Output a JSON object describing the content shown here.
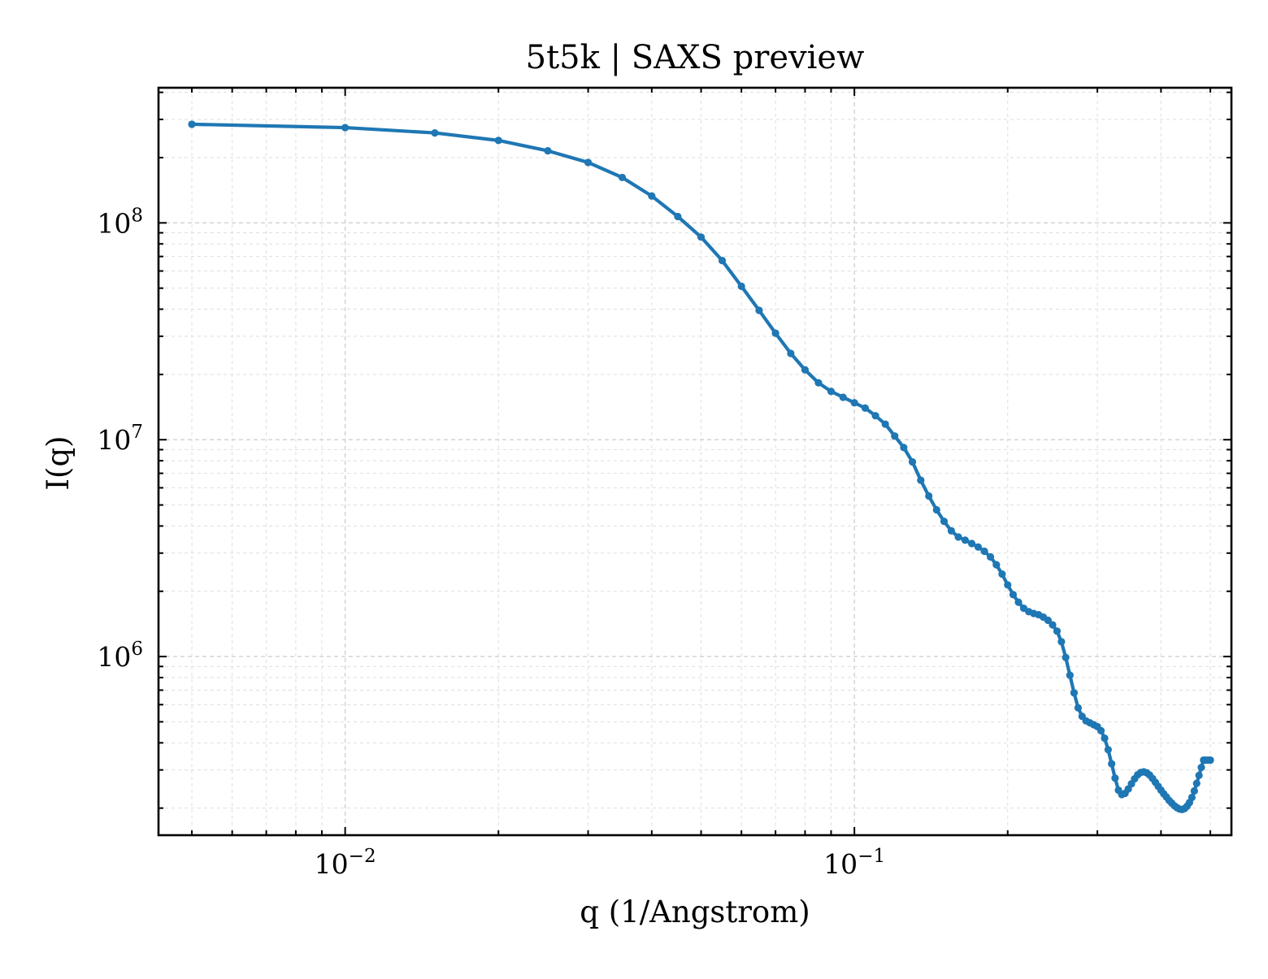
{
  "chart_data": {
    "type": "line",
    "title": "5t5k | SAXS preview",
    "xlabel": "q (1/Angstrom)",
    "ylabel": "I(q)",
    "xscale": "log",
    "yscale": "log",
    "xlim": [
      0.0043,
      0.55
    ],
    "ylim": [
      150000,
      420000000
    ],
    "grid": true,
    "x_ticks": [
      {
        "value": 0.01,
        "base": "10",
        "exp": "−2"
      },
      {
        "value": 0.1,
        "base": "10",
        "exp": "−1"
      }
    ],
    "y_ticks": [
      {
        "value": 1000000,
        "base": "10",
        "exp": "6"
      },
      {
        "value": 10000000,
        "base": "10",
        "exp": "7"
      },
      {
        "value": 100000000,
        "base": "10",
        "exp": "8"
      }
    ],
    "colors": {
      "series": "#1f77b4"
    },
    "series": [
      {
        "x": [
          0.005,
          0.01,
          0.015,
          0.02,
          0.025,
          0.03,
          0.035,
          0.04,
          0.045,
          0.05,
          0.055,
          0.06,
          0.065,
          0.07,
          0.075,
          0.08,
          0.085,
          0.09,
          0.095,
          0.1,
          0.105,
          0.11,
          0.115,
          0.12,
          0.125,
          0.13,
          0.135,
          0.14,
          0.145,
          0.15,
          0.155,
          0.16,
          0.165,
          0.17,
          0.175,
          0.18,
          0.185,
          0.19,
          0.195,
          0.2,
          0.205,
          0.21,
          0.215,
          0.22,
          0.225,
          0.23,
          0.235,
          0.24,
          0.245,
          0.25,
          0.255,
          0.26,
          0.265,
          0.27,
          0.275,
          0.28,
          0.285,
          0.29,
          0.295,
          0.3,
          0.305,
          0.31,
          0.315,
          0.32,
          0.325,
          0.33,
          0.335,
          0.34,
          0.345,
          0.35,
          0.355,
          0.36,
          0.365,
          0.37,
          0.375,
          0.38,
          0.385,
          0.39,
          0.395,
          0.4,
          0.405,
          0.41,
          0.415,
          0.42,
          0.425,
          0.43,
          0.435,
          0.44,
          0.445,
          0.45,
          0.455,
          0.46,
          0.465,
          0.47,
          0.475,
          0.48,
          0.485,
          0.49,
          0.495,
          0.5
        ],
        "y": [
          285000000,
          275000000,
          260000000,
          240000000,
          215000000,
          190000000,
          162000000,
          133000000,
          107000000,
          86000000,
          67000000,
          51000000,
          39500000,
          31000000,
          25000000,
          21000000,
          18300000,
          16700000,
          15700000,
          14800000,
          14000000,
          12900000,
          11800000,
          10400000,
          9200000,
          7900000,
          6500000,
          5500000,
          4750000,
          4200000,
          3800000,
          3560000,
          3440000,
          3320000,
          3200000,
          3060000,
          2880000,
          2650000,
          2400000,
          2140000,
          1930000,
          1780000,
          1670000,
          1610000,
          1580000,
          1560000,
          1520000,
          1470000,
          1400000,
          1310000,
          1170000,
          990000,
          820000,
          680000,
          580000,
          530000,
          505000,
          495000,
          485000,
          475000,
          455000,
          420000,
          372000,
          320000,
          275000,
          242000,
          231000,
          234000,
          245000,
          259000,
          273000,
          285000,
          292000,
          294000,
          291000,
          284000,
          274000,
          263000,
          252000,
          242000,
          233000,
          225000,
          217000,
          211000,
          205000,
          201000,
          198000,
          197000,
          199000,
          204000,
          212000,
          224000,
          240000,
          260000,
          283000,
          308000,
          333000,
          333000,
          333000,
          333000
        ]
      }
    ]
  }
}
